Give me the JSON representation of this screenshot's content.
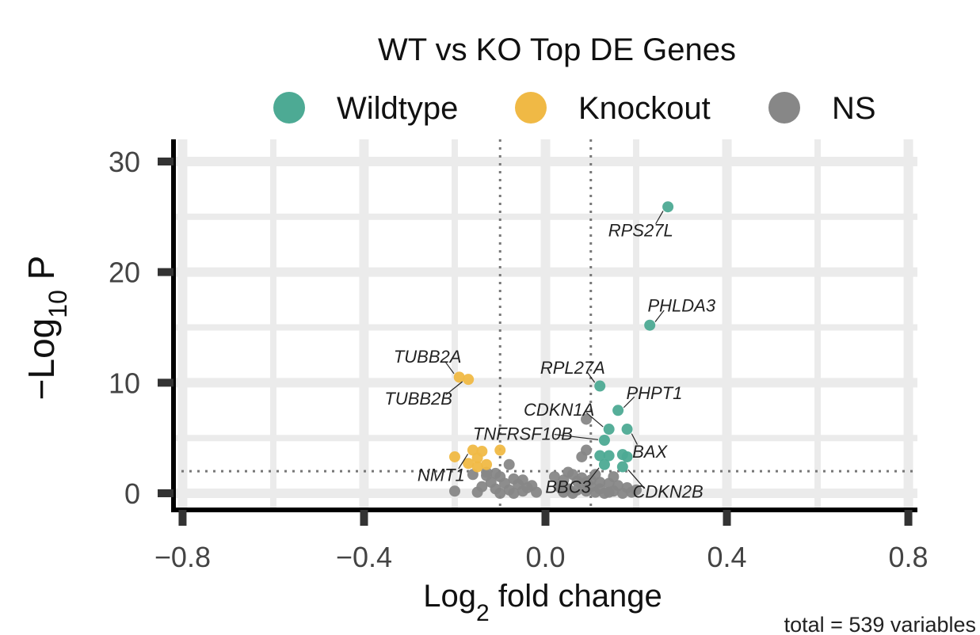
{
  "chart_data": {
    "type": "scatter",
    "title": "WT vs KO Top DE Genes",
    "xlabel_main": "Log",
    "xlabel_sub": "2",
    "xlabel_rest": " fold change",
    "ylabel_prefix": "−Log",
    "ylabel_sub": "10",
    "ylabel_rest": " P",
    "caption": "total = 539 variables",
    "xlim": [
      -0.82,
      0.82
    ],
    "ylim": [
      -1.5,
      32
    ],
    "x_ticks": [
      {
        "value": -0.8,
        "label": "−0.8"
      },
      {
        "value": -0.4,
        "label": "−0.4"
      },
      {
        "value": 0.0,
        "label": "0.0"
      },
      {
        "value": 0.4,
        "label": "0.4"
      },
      {
        "value": 0.8,
        "label": "0.8"
      }
    ],
    "y_ticks": [
      {
        "value": 0,
        "label": "0"
      },
      {
        "value": 10,
        "label": "10"
      },
      {
        "value": 20,
        "label": "20"
      },
      {
        "value": 30,
        "label": "30"
      }
    ],
    "grid": true,
    "legend_position": "top",
    "thresholds": {
      "fc_low": -0.1,
      "fc_high": 0.1,
      "p_line": 2
    },
    "legend": [
      {
        "key": "wt",
        "label": "Wildtype",
        "color": "#4daa94"
      },
      {
        "key": "ko",
        "label": "Knockout",
        "color": "#f0b945"
      },
      {
        "key": "ns",
        "label": "NS",
        "color": "#878787"
      }
    ],
    "series": [
      {
        "name": "Wildtype",
        "key": "wt",
        "color": "#4daa94",
        "points": [
          [
            0.27,
            25.9
          ],
          [
            0.23,
            15.2
          ],
          [
            0.12,
            9.7
          ],
          [
            0.16,
            7.5
          ],
          [
            0.14,
            5.8
          ],
          [
            0.18,
            5.8
          ],
          [
            0.13,
            4.8
          ],
          [
            0.12,
            3.4
          ],
          [
            0.14,
            3.4
          ],
          [
            0.17,
            3.5
          ],
          [
            0.18,
            3.3
          ],
          [
            0.17,
            2.4
          ],
          [
            0.13,
            2.6
          ]
        ]
      },
      {
        "name": "Knockout",
        "key": "ko",
        "color": "#f0b945",
        "points": [
          [
            -0.19,
            10.5
          ],
          [
            -0.17,
            10.3
          ],
          [
            -0.2,
            3.3
          ],
          [
            -0.16,
            3.9
          ],
          [
            -0.14,
            3.8
          ],
          [
            -0.1,
            3.9
          ],
          [
            -0.15,
            3.2
          ],
          [
            -0.13,
            2.6
          ],
          [
            -0.17,
            2.7
          ],
          [
            -0.15,
            2.4
          ]
        ]
      },
      {
        "name": "NS",
        "key": "ns",
        "color": "#878787",
        "points": [
          [
            0.09,
            6.7
          ],
          [
            0.09,
            3.9
          ],
          [
            0.08,
            3.3
          ],
          [
            -0.08,
            2.6
          ],
          [
            -0.2,
            0.2
          ],
          [
            -0.16,
            1.7
          ],
          [
            -0.13,
            1.6
          ],
          [
            -0.1,
            1.5
          ],
          [
            -0.07,
            1.3
          ],
          [
            -0.05,
            1.2
          ],
          [
            -0.12,
            1.0
          ],
          [
            -0.09,
            0.9
          ],
          [
            -0.06,
            0.8
          ],
          [
            -0.03,
            0.7
          ],
          [
            -0.14,
            0.6
          ],
          [
            -0.11,
            0.4
          ],
          [
            -0.08,
            0.3
          ],
          [
            -0.05,
            0.2
          ],
          [
            -0.02,
            0.1
          ],
          [
            -0.15,
            0.1
          ],
          [
            -0.1,
            0.0
          ],
          [
            -0.07,
            0.0
          ],
          [
            -0.13,
            1.9
          ],
          [
            -0.11,
            1.8
          ],
          [
            -0.04,
            0.5
          ],
          [
            0.02,
            1.5
          ],
          [
            0.04,
            1.2
          ],
          [
            0.06,
            1.7
          ],
          [
            0.08,
            1.4
          ],
          [
            0.1,
            1.2
          ],
          [
            0.12,
            1.0
          ],
          [
            0.14,
            0.9
          ],
          [
            0.16,
            0.7
          ],
          [
            0.18,
            0.5
          ],
          [
            0.05,
            0.4
          ],
          [
            0.07,
            0.3
          ],
          [
            0.09,
            0.2
          ],
          [
            0.11,
            0.1
          ],
          [
            0.13,
            0.0
          ],
          [
            0.15,
            0.2
          ],
          [
            0.03,
            0.6
          ],
          [
            0.06,
            0.0
          ],
          [
            0.08,
            0.8
          ],
          [
            0.1,
            0.6
          ],
          [
            0.12,
            0.4
          ],
          [
            0.14,
            0.1
          ],
          [
            0.17,
            0.0
          ],
          [
            0.19,
            0.1
          ],
          [
            0.2,
            0.3
          ],
          [
            0.05,
            1.9
          ],
          [
            0.11,
            1.7
          ],
          [
            0.15,
            1.5
          ],
          [
            0.09,
            1.0
          ],
          [
            0.04,
            0.1
          ],
          [
            0.07,
            1.1
          ]
        ]
      }
    ],
    "gene_labels": [
      {
        "gene": "RPS27L",
        "point": [
          0.27,
          25.9
        ],
        "label_pos": [
          0.21,
          23.8
        ]
      },
      {
        "gene": "PHLDA3",
        "point": [
          0.23,
          15.2
        ],
        "label_pos": [
          0.3,
          17.0
        ]
      },
      {
        "gene": "TUBB2A",
        "point": [
          -0.19,
          10.5
        ],
        "label_pos": [
          -0.26,
          12.4
        ]
      },
      {
        "gene": "TUBB2B",
        "point": [
          -0.17,
          10.3
        ],
        "label_pos": [
          -0.28,
          8.6
        ]
      },
      {
        "gene": "RPL27A",
        "point": [
          0.12,
          9.7
        ],
        "label_pos": [
          0.06,
          11.4
        ]
      },
      {
        "gene": "PHPT1",
        "point": [
          0.16,
          7.5
        ],
        "label_pos": [
          0.24,
          9.1
        ]
      },
      {
        "gene": "CDKN1A",
        "point": [
          0.14,
          5.8
        ],
        "label_pos": [
          0.03,
          7.6
        ]
      },
      {
        "gene": "TNFRSF10B",
        "point": [
          0.13,
          4.8
        ],
        "label_pos": [
          -0.05,
          5.4
        ]
      },
      {
        "gene": "BAX",
        "point": [
          0.18,
          5.8
        ],
        "label_pos": [
          0.23,
          3.8
        ]
      },
      {
        "gene": "NMT1",
        "point": [
          -0.16,
          3.9
        ],
        "label_pos": [
          -0.23,
          1.7
        ]
      },
      {
        "gene": "BBC3",
        "point": [
          0.13,
          2.6
        ],
        "label_pos": [
          0.05,
          0.6
        ]
      },
      {
        "gene": "CDKN2B",
        "point": [
          0.17,
          2.4
        ],
        "label_pos": [
          0.27,
          0.2
        ]
      }
    ]
  }
}
